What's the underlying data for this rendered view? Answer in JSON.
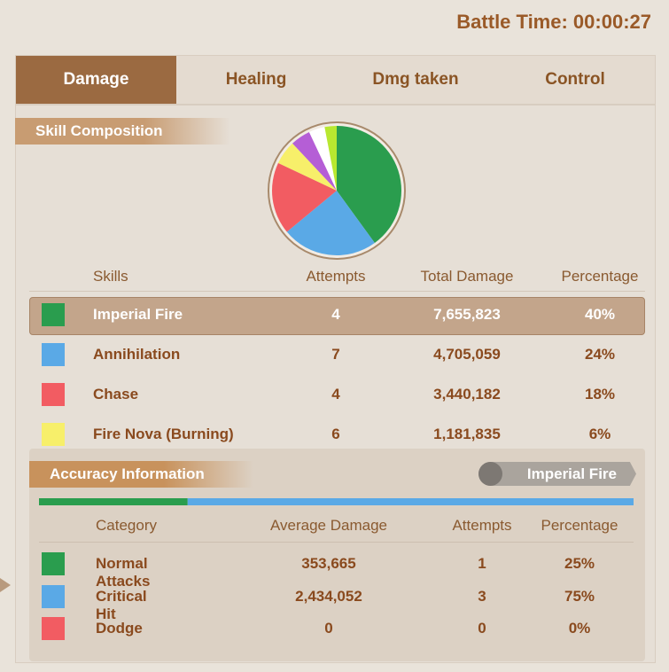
{
  "battle_time": "Battle Time: 00:00:27",
  "tabs": [
    "Damage",
    "Healing",
    "Dmg taken",
    "Control"
  ],
  "active_tab": 0,
  "skill_composition": {
    "title": "Skill Composition",
    "pie": {
      "type": "pie",
      "values": [
        40,
        24,
        18,
        6,
        5,
        4,
        3
      ],
      "colors": [
        "#2a9d4e",
        "#5aa9e6",
        "#f25c62",
        "#f7ef6a",
        "#b55ed6",
        "#ffffff",
        "#b8e830"
      ]
    },
    "headers": [
      "Skills",
      "Attempts",
      "Total Damage",
      "Percentage"
    ],
    "selected_row": 0,
    "rows": [
      {
        "name": "Imperial Fire",
        "color": "#2a9d4e",
        "attempts": "4",
        "total_damage": "7,655,823",
        "percentage": "40%"
      },
      {
        "name": "Annihilation",
        "color": "#5aa9e6",
        "attempts": "7",
        "total_damage": "4,705,059",
        "percentage": "24%"
      },
      {
        "name": "Chase",
        "color": "#f25c62",
        "attempts": "4",
        "total_damage": "3,440,182",
        "percentage": "18%"
      },
      {
        "name": "Fire Nova (Burning)",
        "color": "#f7ef6a",
        "attempts": "6",
        "total_damage": "1,181,835",
        "percentage": "6%"
      }
    ]
  },
  "accuracy": {
    "title": "Accuracy Information",
    "selected_skill": "Imperial Fire",
    "bar": {
      "values": [
        25,
        75,
        0
      ],
      "colors": [
        "#2a9d4e",
        "#5aa9e6",
        "#f25c62"
      ]
    },
    "headers": [
      "Category",
      "Average Damage",
      "Attempts",
      "Percentage"
    ],
    "rows": [
      {
        "name": "Normal Attacks",
        "color": "#2a9d4e",
        "average_damage": "353,665",
        "attempts": "1",
        "percentage": "25%"
      },
      {
        "name": "Critical Hit",
        "color": "#5aa9e6",
        "average_damage": "2,434,052",
        "attempts": "3",
        "percentage": "75%"
      },
      {
        "name": "Dodge",
        "color": "#f25c62",
        "average_damage": "0",
        "attempts": "0",
        "percentage": "0%"
      }
    ]
  }
}
